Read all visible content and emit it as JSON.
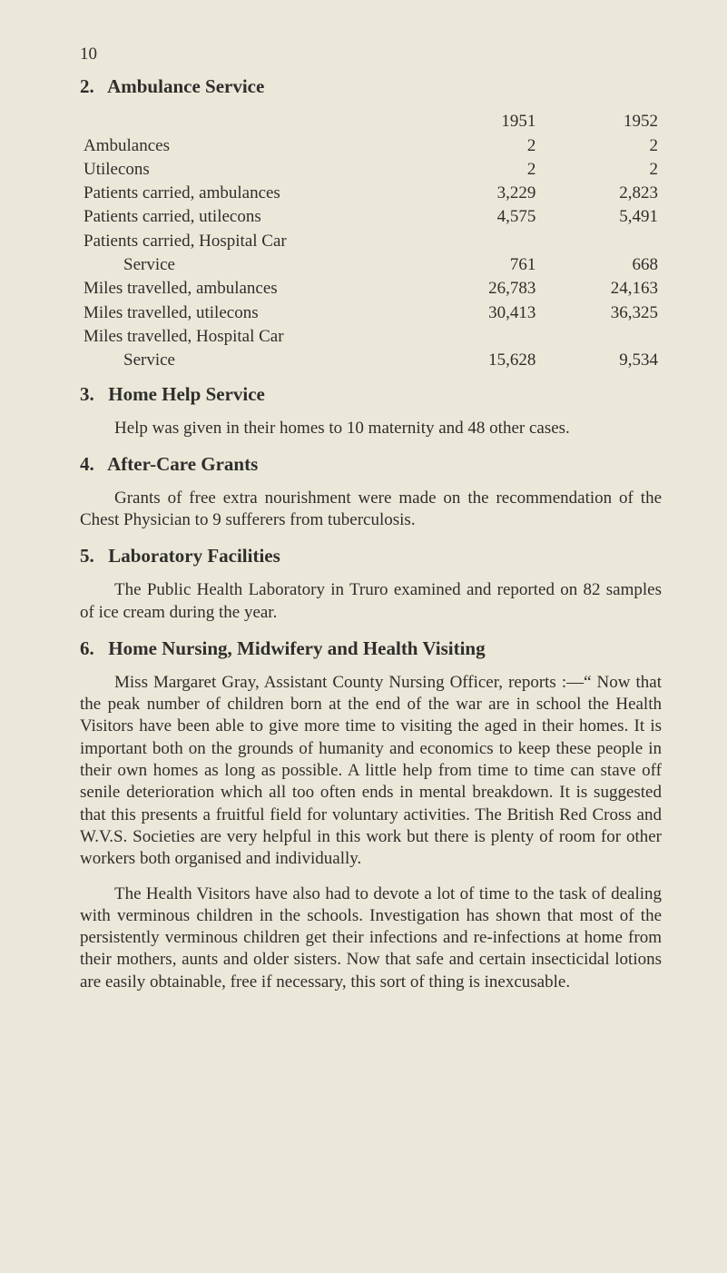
{
  "page_number": "10",
  "sections": {
    "s2": {
      "num": "2.",
      "title": "Ambulance Service"
    },
    "s3": {
      "num": "3.",
      "title": "Home Help Service"
    },
    "s4": {
      "num": "4.",
      "title": "After-Care Grants"
    },
    "s5": {
      "num": "5.",
      "title": "Laboratory Facilities"
    },
    "s6": {
      "num": "6.",
      "title": "Home Nursing, Midwifery and Health Visiting"
    }
  },
  "table": {
    "year1": "1951",
    "year2": "1952",
    "r1": {
      "label": "Ambulances",
      "c1": "2",
      "c2": "2"
    },
    "r2": {
      "label": "Utilecons",
      "c1": "2",
      "c2": "2"
    },
    "r3": {
      "label": "Patients carried, ambulances",
      "c1": "3,229",
      "c2": "2,823"
    },
    "r4": {
      "label": "Patients carried, utilecons",
      "c1": "4,575",
      "c2": "5,491"
    },
    "r5a": {
      "label": "Patients carried, Hospital Car"
    },
    "r5b": {
      "label": "Service",
      "c1": "761",
      "c2": "668"
    },
    "r6": {
      "label": "Miles travelled, ambulances",
      "c1": "26,783",
      "c2": "24,163"
    },
    "r7": {
      "label": "Miles travelled, utilecons",
      "c1": "30,413",
      "c2": "36,325"
    },
    "r8a": {
      "label": "Miles travelled, Hospital Car"
    },
    "r8b": {
      "label": "Service",
      "c1": "15,628",
      "c2": "9,534"
    }
  },
  "para": {
    "p3": "Help was given in their homes to 10 maternity and 48 other cases.",
    "p4": "Grants of free extra nourishment were made on the recommendation of the Chest Physician to 9 sufferers from tuberculosis.",
    "p5": "The Public Health Laboratory in Truro examined and reported on 82 samples of ice cream during the year.",
    "p6a": "Miss Margaret Gray, Assistant County Nursing Officer, reports :—“ Now that the peak number of children born at the end of the war are in school the Health Visitors have been able to give more time to visiting the aged in their homes. It is important both on the grounds of humanity and economics to keep these people in their own homes as long as possible. A little help from time to time can stave off senile deterioration which all too often ends in mental breakdown. It is suggested that this presents a fruitful field for voluntary activities. The British Red Cross and W.V.S. Societies are very helpful in this work but there is plenty of room for other workers both organised and individually.",
    "p6b": "The Health Visitors have also had to devote a lot of time to the task of dealing with verminous children in the schools. Investigation has shown that most of the persistently verminous children get their infections and re-infections at home from their mothers, aunts and older sisters. Now that safe and certain insecticidal lotions are easily obtainable, free if necessary, this sort of thing is inexcusable."
  },
  "style": {
    "background": "#ece8d9",
    "text_color": "#2e2e2c",
    "body_fontsize": 19,
    "heading_fontsize": 21,
    "font_family": "Georgia, Times New Roman, serif"
  }
}
